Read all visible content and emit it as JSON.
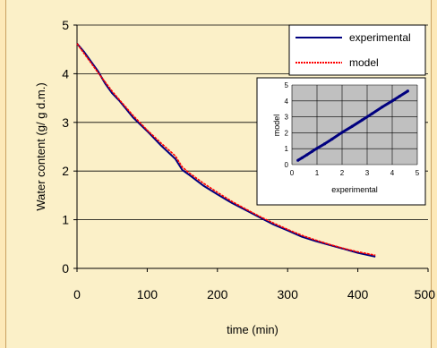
{
  "chart_data": [
    {
      "type": "line",
      "title": "",
      "xlabel": "time (min)",
      "ylabel": "Water content (g/ g d.m.)",
      "xlim": [
        0,
        500
      ],
      "ylim": [
        0,
        5
      ],
      "xticks": [
        0,
        100,
        200,
        300,
        400,
        500
      ],
      "yticks": [
        0,
        1,
        2,
        3,
        4,
        5
      ],
      "grid": "horizontal",
      "legend": "top-right",
      "series": [
        {
          "name": "experimental",
          "color": "#00007f",
          "x": [
            0,
            10,
            20,
            30,
            40,
            50,
            60,
            80,
            100,
            120,
            140,
            150,
            160,
            180,
            200,
            220,
            240,
            260,
            280,
            300,
            320,
            340,
            360,
            380,
            400,
            425
          ],
          "y": [
            4.62,
            4.45,
            4.25,
            4.05,
            3.8,
            3.6,
            3.45,
            3.1,
            2.82,
            2.52,
            2.25,
            2.02,
            1.92,
            1.7,
            1.52,
            1.35,
            1.2,
            1.05,
            0.9,
            0.78,
            0.65,
            0.56,
            0.48,
            0.4,
            0.32,
            0.24
          ]
        },
        {
          "name": "model",
          "color": "#ff0000",
          "x": [
            0,
            10,
            20,
            30,
            40,
            50,
            60,
            80,
            100,
            120,
            140,
            150,
            160,
            180,
            200,
            220,
            240,
            260,
            280,
            300,
            320,
            340,
            360,
            380,
            400,
            425
          ],
          "y": [
            4.62,
            4.42,
            4.22,
            4.02,
            3.83,
            3.64,
            3.47,
            3.14,
            2.84,
            2.57,
            2.31,
            2.08,
            1.96,
            1.75,
            1.56,
            1.38,
            1.22,
            1.07,
            0.93,
            0.8,
            0.68,
            0.58,
            0.49,
            0.41,
            0.34,
            0.27
          ]
        }
      ]
    },
    {
      "type": "scatter",
      "title": "",
      "xlabel": "experimental",
      "ylabel": "model",
      "xlim": [
        0,
        5
      ],
      "ylim": [
        0,
        5
      ],
      "xticks": [
        0,
        1,
        2,
        3,
        4,
        5
      ],
      "yticks": [
        0,
        1,
        2,
        3,
        4,
        5
      ],
      "grid": "both",
      "series": [
        {
          "name": "",
          "color": "#00007f",
          "x": [
            0.24,
            0.4,
            0.6,
            0.8,
            1.0,
            1.3,
            1.6,
            2.0,
            2.4,
            2.8,
            3.2,
            3.6,
            4.0,
            4.3,
            4.62
          ],
          "y": [
            0.27,
            0.42,
            0.62,
            0.82,
            1.02,
            1.3,
            1.6,
            2.02,
            2.4,
            2.8,
            3.2,
            3.62,
            4.0,
            4.3,
            4.62
          ]
        }
      ]
    }
  ]
}
